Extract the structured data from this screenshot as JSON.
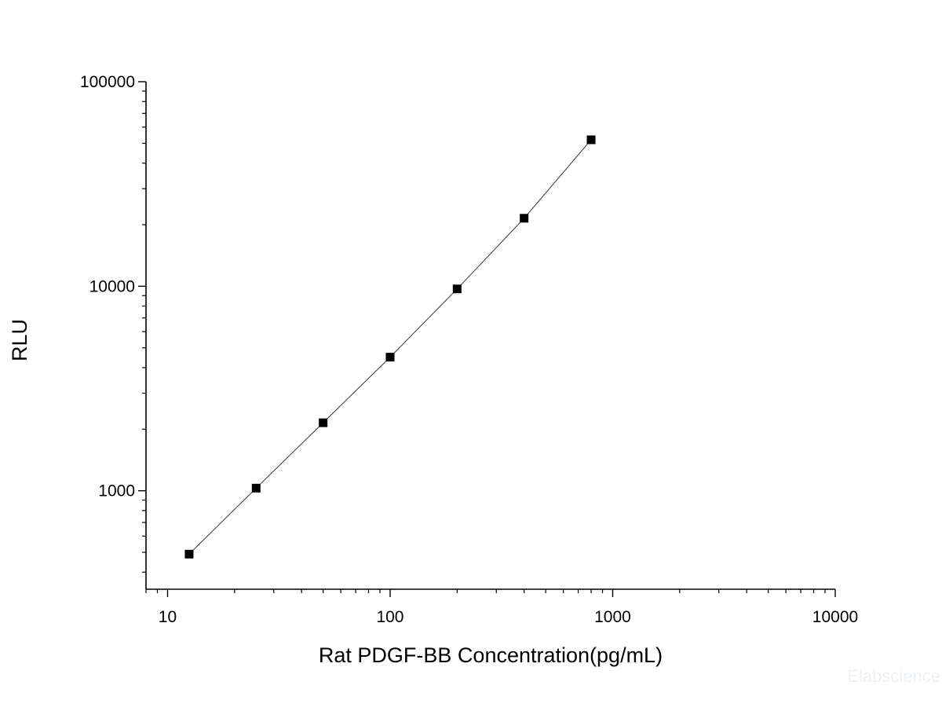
{
  "chart_data": {
    "type": "scatter",
    "title": "",
    "xlabel": "Rat PDGF-BB Concentration(pg/mL)",
    "ylabel": "RLU",
    "x_scale": "log",
    "y_scale": "log",
    "xlim": [
      8,
      10000
    ],
    "ylim": [
      330,
      100000
    ],
    "x_ticks": [
      10,
      100,
      1000,
      10000
    ],
    "x_tick_labels": [
      "10",
      "100",
      "1000",
      "10000"
    ],
    "y_ticks": [
      1000,
      10000,
      100000
    ],
    "y_tick_labels": [
      "1000",
      "10000",
      "100000"
    ],
    "grid": false,
    "legend": "none",
    "series": [
      {
        "marker": "square",
        "connected": true,
        "x": [
          12.5,
          25,
          50,
          100,
          200,
          400,
          800
        ],
        "y": [
          490,
          1030,
          2150,
          4500,
          9700,
          21500,
          52000
        ]
      }
    ],
    "colors": {
      "marker": "#000000",
      "line": "#333333",
      "axis": "#000000"
    }
  },
  "watermark": "Elabscience"
}
